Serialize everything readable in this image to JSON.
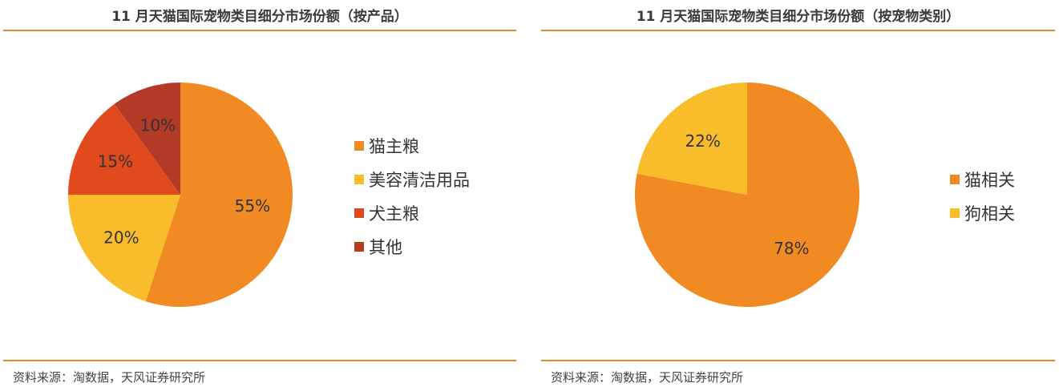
{
  "panels": [
    {
      "title": "11 月天猫国际宠物类目细分市场份额（按产品）",
      "source": "资料来源：淘数据，天风证券研究所"
    },
    {
      "title": "11 月天猫国际宠物类目细分市场份额（按宠物类别）",
      "source": "资料来源：淘数据，天风证券研究所"
    }
  ],
  "chart_data": [
    {
      "type": "pie",
      "title": "11 月天猫国际宠物类目细分市场份额（按产品）",
      "categories": [
        "猫主粮",
        "美容清洁用品",
        "犬主粮",
        "其他"
      ],
      "values": [
        55,
        20,
        15,
        10
      ],
      "labels": [
        "55%",
        "20%",
        "15%",
        "10%"
      ],
      "colors": [
        "#f28a23",
        "#f9bd2b",
        "#e04a1c",
        "#b23a26"
      ],
      "start_angle_deg": 0,
      "direction": "clockwise",
      "legend_position": "right"
    },
    {
      "type": "pie",
      "title": "11 月天猫国际宠物类目细分市场份额（按宠物类别）",
      "categories": [
        "猫相关",
        "狗相关"
      ],
      "values": [
        78,
        22
      ],
      "labels": [
        "78%",
        "22%"
      ],
      "colors": [
        "#f28a23",
        "#f9bd2b"
      ],
      "start_angle_deg": 0,
      "direction": "clockwise",
      "legend_position": "right"
    }
  ]
}
